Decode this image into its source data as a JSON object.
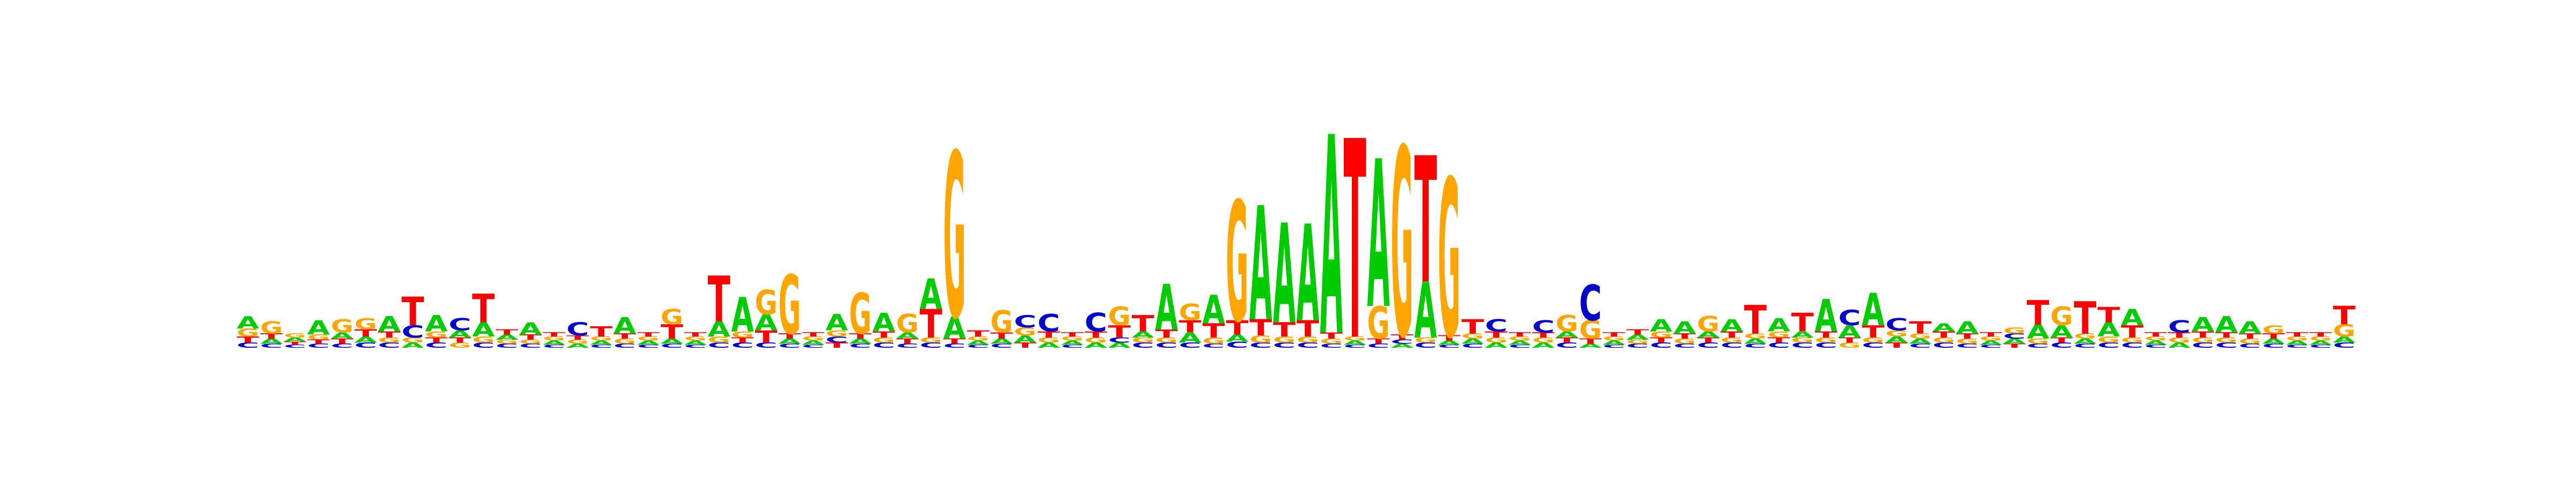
{
  "chart_data": {
    "type": "sequence-logo",
    "title": "",
    "xlabel": "",
    "ylabel": "",
    "axes_visible": false,
    "grid": false,
    "legend": "none",
    "letter_colors": {
      "A": "#00cc00",
      "C": "#0000cc",
      "G": "#ffa500",
      "T": "#ff0000"
    },
    "ylim": [
      0,
      2
    ],
    "positions": [
      {
        "A": 0.12,
        "C": 0.05,
        "G": 0.08,
        "T": 0.06
      },
      {
        "A": 0.05,
        "C": 0.04,
        "G": 0.12,
        "T": 0.05
      },
      {
        "A": 0.04,
        "C": 0.03,
        "G": 0.04,
        "T": 0.03
      },
      {
        "A": 0.14,
        "C": 0.04,
        "G": 0.05,
        "T": 0.04
      },
      {
        "A": 0.06,
        "C": 0.04,
        "G": 0.13,
        "T": 0.05
      },
      {
        "A": 0.06,
        "C": 0.05,
        "G": 0.11,
        "T": 0.07
      },
      {
        "A": 0.15,
        "C": 0.05,
        "G": 0.05,
        "T": 0.06
      },
      {
        "A": 0.05,
        "C": 0.12,
        "G": 0.05,
        "T": 0.28
      },
      {
        "A": 0.16,
        "C": 0.05,
        "G": 0.06,
        "T": 0.05
      },
      {
        "A": 0.07,
        "C": 0.12,
        "G": 0.05,
        "T": 0.05
      },
      {
        "A": 0.14,
        "C": 0.05,
        "G": 0.06,
        "T": 0.28
      },
      {
        "A": 0.05,
        "C": 0.04,
        "G": 0.04,
        "T": 0.05
      },
      {
        "A": 0.12,
        "C": 0.04,
        "G": 0.04,
        "T": 0.05
      },
      {
        "A": 0.04,
        "C": 0.03,
        "G": 0.04,
        "T": 0.04
      },
      {
        "A": 0.04,
        "C": 0.13,
        "G": 0.04,
        "T": 0.04
      },
      {
        "A": 0.04,
        "C": 0.03,
        "G": 0.04,
        "T": 0.1
      },
      {
        "A": 0.16,
        "C": 0.04,
        "G": 0.05,
        "T": 0.05
      },
      {
        "A": 0.04,
        "C": 0.03,
        "G": 0.04,
        "T": 0.04
      },
      {
        "A": 0.05,
        "C": 0.04,
        "G": 0.15,
        "T": 0.14
      },
      {
        "A": 0.04,
        "C": 0.03,
        "G": 0.04,
        "T": 0.04
      },
      {
        "A": 0.15,
        "C": 0.05,
        "G": 0.06,
        "T": 0.45
      },
      {
        "A": 0.34,
        "C": 0.05,
        "G": 0.06,
        "T": 0.05
      },
      {
        "A": 0.16,
        "C": 0.05,
        "G": 0.24,
        "T": 0.12
      },
      {
        "A": 0.05,
        "C": 0.04,
        "G": 0.58,
        "T": 0.05
      },
      {
        "A": 0.04,
        "C": 0.03,
        "G": 0.04,
        "T": 0.04
      },
      {
        "A": 0.16,
        "C": 0.06,
        "G": 0.06,
        "T": 0.05
      },
      {
        "A": 0.05,
        "C": 0.04,
        "G": 0.4,
        "T": 0.05
      },
      {
        "A": 0.18,
        "C": 0.05,
        "G": 0.05,
        "T": 0.06
      },
      {
        "A": 0.06,
        "C": 0.04,
        "G": 0.18,
        "T": 0.05
      },
      {
        "A": 0.3,
        "C": 0.05,
        "G": 0.05,
        "T": 0.28
      },
      {
        "A": 0.22,
        "C": 0.04,
        "G": 1.62,
        "T": 0.05
      },
      {
        "A": 0.04,
        "C": 0.03,
        "G": 0.04,
        "T": 0.06
      },
      {
        "A": 0.05,
        "C": 0.04,
        "G": 0.22,
        "T": 0.06
      },
      {
        "A": 0.07,
        "C": 0.12,
        "G": 0.08,
        "T": 0.05
      },
      {
        "A": 0.05,
        "C": 0.17,
        "G": 0.05,
        "T": 0.06
      },
      {
        "A": 0.04,
        "C": 0.03,
        "G": 0.04,
        "T": 0.04
      },
      {
        "A": 0.05,
        "C": 0.18,
        "G": 0.05,
        "T": 0.06
      },
      {
        "A": 0.05,
        "C": 0.05,
        "G": 0.18,
        "T": 0.12
      },
      {
        "A": 0.06,
        "C": 0.05,
        "G": 0.05,
        "T": 0.16
      },
      {
        "A": 0.45,
        "C": 0.05,
        "G": 0.05,
        "T": 0.08
      },
      {
        "A": 0.1,
        "C": 0.05,
        "G": 0.16,
        "T": 0.12
      },
      {
        "A": 0.28,
        "C": 0.04,
        "G": 0.06,
        "T": 0.14
      },
      {
        "A": 0.07,
        "C": 0.06,
        "G": 1.18,
        "T": 0.14
      },
      {
        "A": 1.12,
        "C": 0.05,
        "G": 0.07,
        "T": 0.16
      },
      {
        "A": 0.98,
        "C": 0.05,
        "G": 0.06,
        "T": 0.14
      },
      {
        "A": 0.95,
        "C": 0.05,
        "G": 0.06,
        "T": 0.16
      },
      {
        "A": 1.95,
        "C": 0.04,
        "G": 0.05,
        "T": 0.06
      },
      {
        "A": 0.04,
        "C": 0.03,
        "G": 0.04,
        "T": 1.95
      },
      {
        "A": 1.45,
        "C": 0.04,
        "G": 0.32,
        "T": 0.05
      },
      {
        "A": 0.04,
        "C": 0.04,
        "G": 1.85,
        "T": 0.05
      },
      {
        "A": 0.55,
        "C": 0.05,
        "G": 0.05,
        "T": 1.24
      },
      {
        "A": 0.04,
        "C": 0.03,
        "G": 1.55,
        "T": 0.05
      },
      {
        "A": 0.05,
        "C": 0.04,
        "G": 0.05,
        "T": 0.14
      },
      {
        "A": 0.05,
        "C": 0.12,
        "G": 0.05,
        "T": 0.06
      },
      {
        "A": 0.04,
        "C": 0.03,
        "G": 0.04,
        "T": 0.04
      },
      {
        "A": 0.05,
        "C": 0.12,
        "G": 0.05,
        "T": 0.05
      },
      {
        "A": 0.06,
        "C": 0.05,
        "G": 0.16,
        "T": 0.05
      },
      {
        "A": 0.04,
        "C": 0.35,
        "G": 0.18,
        "T": 0.05
      },
      {
        "A": 0.04,
        "C": 0.03,
        "G": 0.04,
        "T": 0.04
      },
      {
        "A": 0.05,
        "C": 0.04,
        "G": 0.04,
        "T": 0.05
      },
      {
        "A": 0.12,
        "C": 0.05,
        "G": 0.06,
        "T": 0.05
      },
      {
        "A": 0.12,
        "C": 0.04,
        "G": 0.05,
        "T": 0.05
      },
      {
        "A": 0.06,
        "C": 0.05,
        "G": 0.15,
        "T": 0.05
      },
      {
        "A": 0.12,
        "C": 0.05,
        "G": 0.05,
        "T": 0.06
      },
      {
        "A": 0.05,
        "C": 0.04,
        "G": 0.05,
        "T": 0.28
      },
      {
        "A": 0.13,
        "C": 0.05,
        "G": 0.06,
        "T": 0.05
      },
      {
        "A": 0.06,
        "C": 0.05,
        "G": 0.05,
        "T": 0.18
      },
      {
        "A": 0.32,
        "C": 0.05,
        "G": 0.05,
        "T": 0.06
      },
      {
        "A": 0.12,
        "C": 0.15,
        "G": 0.05,
        "T": 0.05
      },
      {
        "A": 0.32,
        "C": 0.05,
        "G": 0.05,
        "T": 0.12
      },
      {
        "A": 0.06,
        "C": 0.12,
        "G": 0.06,
        "T": 0.05
      },
      {
        "A": 0.05,
        "C": 0.04,
        "G": 0.05,
        "T": 0.12
      },
      {
        "A": 0.08,
        "C": 0.05,
        "G": 0.05,
        "T": 0.06
      },
      {
        "A": 0.12,
        "C": 0.04,
        "G": 0.05,
        "T": 0.05
      },
      {
        "A": 0.04,
        "C": 0.03,
        "G": 0.04,
        "T": 0.04
      },
      {
        "A": 0.05,
        "C": 0.05,
        "G": 0.06,
        "T": 0.04
      },
      {
        "A": 0.14,
        "C": 0.04,
        "G": 0.05,
        "T": 0.24
      },
      {
        "A": 0.12,
        "C": 0.05,
        "G": 0.18,
        "T": 0.05
      },
      {
        "A": 0.05,
        "C": 0.04,
        "G": 0.05,
        "T": 0.32
      },
      {
        "A": 0.14,
        "C": 0.05,
        "G": 0.06,
        "T": 0.15
      },
      {
        "A": 0.16,
        "C": 0.05,
        "G": 0.05,
        "T": 0.12
      },
      {
        "A": 0.04,
        "C": 0.03,
        "G": 0.04,
        "T": 0.04
      },
      {
        "A": 0.05,
        "C": 0.12,
        "G": 0.05,
        "T": 0.05
      },
      {
        "A": 0.14,
        "C": 0.05,
        "G": 0.05,
        "T": 0.06
      },
      {
        "A": 0.16,
        "C": 0.05,
        "G": 0.05,
        "T": 0.05
      },
      {
        "A": 0.12,
        "C": 0.04,
        "G": 0.05,
        "T": 0.05
      },
      {
        "A": 0.05,
        "C": 0.04,
        "G": 0.08,
        "T": 0.05
      },
      {
        "A": 0.04,
        "C": 0.03,
        "G": 0.04,
        "T": 0.04
      },
      {
        "A": 0.04,
        "C": 0.03,
        "G": 0.04,
        "T": 0.04
      },
      {
        "A": 0.06,
        "C": 0.05,
        "G": 0.12,
        "T": 0.18
      }
    ]
  }
}
